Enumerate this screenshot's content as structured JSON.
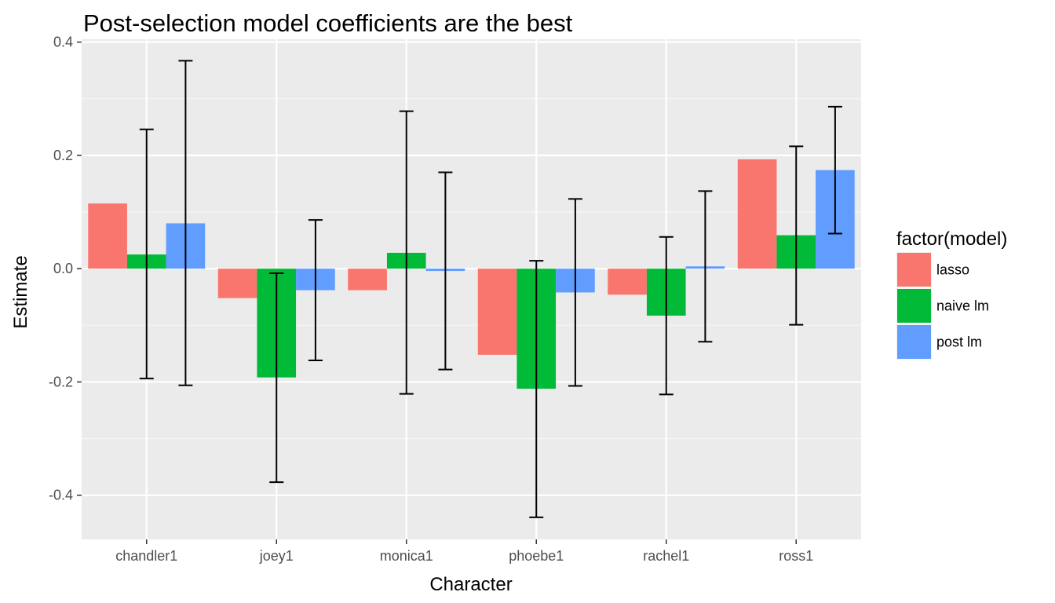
{
  "chart_data": {
    "type": "bar",
    "title": "Post-selection model coefficients are the best",
    "xlabel": "Character",
    "ylabel": "Estimate",
    "categories": [
      "chandler1",
      "joey1",
      "monica1",
      "phoebe1",
      "rachel1",
      "ross1"
    ],
    "ylim": [
      -0.478,
      0.405
    ],
    "yticks": [
      -0.4,
      -0.2,
      0.0,
      0.2,
      0.4
    ],
    "ytick_labels": [
      "-0.4",
      "-0.2",
      "0.0",
      "0.2",
      "0.4"
    ],
    "grid": true,
    "legend": {
      "title": "factor(model)",
      "placement": "right"
    },
    "series": [
      {
        "name": "lasso",
        "color": "#F8766D",
        "values": [
          0.115,
          -0.052,
          -0.038,
          -0.152,
          -0.046,
          0.193
        ],
        "error_low": [
          null,
          null,
          null,
          null,
          null,
          null
        ],
        "error_high": [
          null,
          null,
          null,
          null,
          null,
          null
        ]
      },
      {
        "name": "naive lm",
        "color": "#00BA38",
        "values": [
          0.025,
          -0.192,
          0.028,
          -0.212,
          -0.083,
          0.059
        ],
        "error_low": [
          -0.194,
          -0.377,
          -0.221,
          -0.439,
          -0.222,
          -0.099
        ],
        "error_high": [
          0.246,
          -0.008,
          0.278,
          0.014,
          0.056,
          0.216
        ]
      },
      {
        "name": "post lm",
        "color": "#619CFF",
        "values": [
          0.08,
          -0.038,
          -0.004,
          -0.042,
          0.004,
          0.174
        ],
        "error_low": [
          -0.206,
          -0.162,
          -0.178,
          -0.207,
          -0.129,
          0.062
        ],
        "error_high": [
          0.367,
          0.086,
          0.17,
          0.123,
          0.137,
          0.286
        ]
      }
    ]
  }
}
